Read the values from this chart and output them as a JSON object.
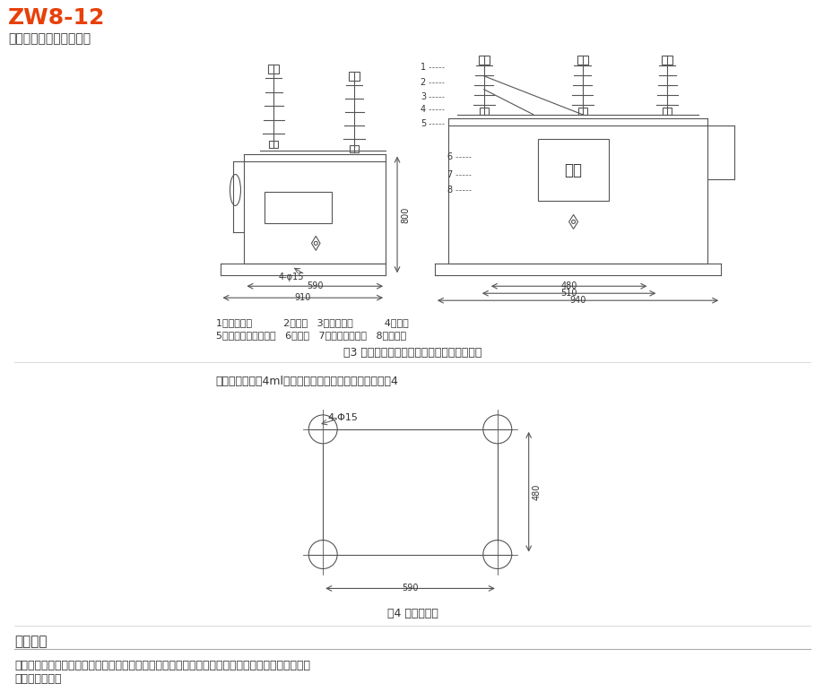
{
  "title": "ZW8-12",
  "subtitle": "户外高压交流真空断路器",
  "bg_color": "#ffffff",
  "title_color": "#e8400a",
  "text_color": "#333333",
  "line_color": "#555555",
  "dim_color": "#555555",
  "label_color_1": "分合",
  "fig3_caption": "图3 组合断路器结构及外形尺寸、安装尺寸图",
  "fig4_caption": "图4 安装孔尺寸",
  "legend_line1": "1、接触刀片          2、触刀   3、绝缘拉杆          4、支柱",
  "legend_line2": "5、隔离开关操作手柄   6、转轴   7、隔离开关支架   8、断路器",
  "install_note": "产品要安装在高4ml以上的柱子上使用，安装孔尺寸见图4",
  "order_title": "订货须知",
  "order_text": "订货时要说明产品的型号、名称、数量、短路开断电流、额定电流、所配电流互感器电流比、操作方\n式及使用场合。",
  "dim_590": "590",
  "dim_910": "910",
  "dim_800": "800",
  "dim_480_top": "480",
  "dim_510": "510",
  "dim_940": "940",
  "dim_4phi15": "4-φ15",
  "dim_4Phi15_fig4": "4-Φ15",
  "dim_480_fig4": "480",
  "dim_590_fig4": "590"
}
